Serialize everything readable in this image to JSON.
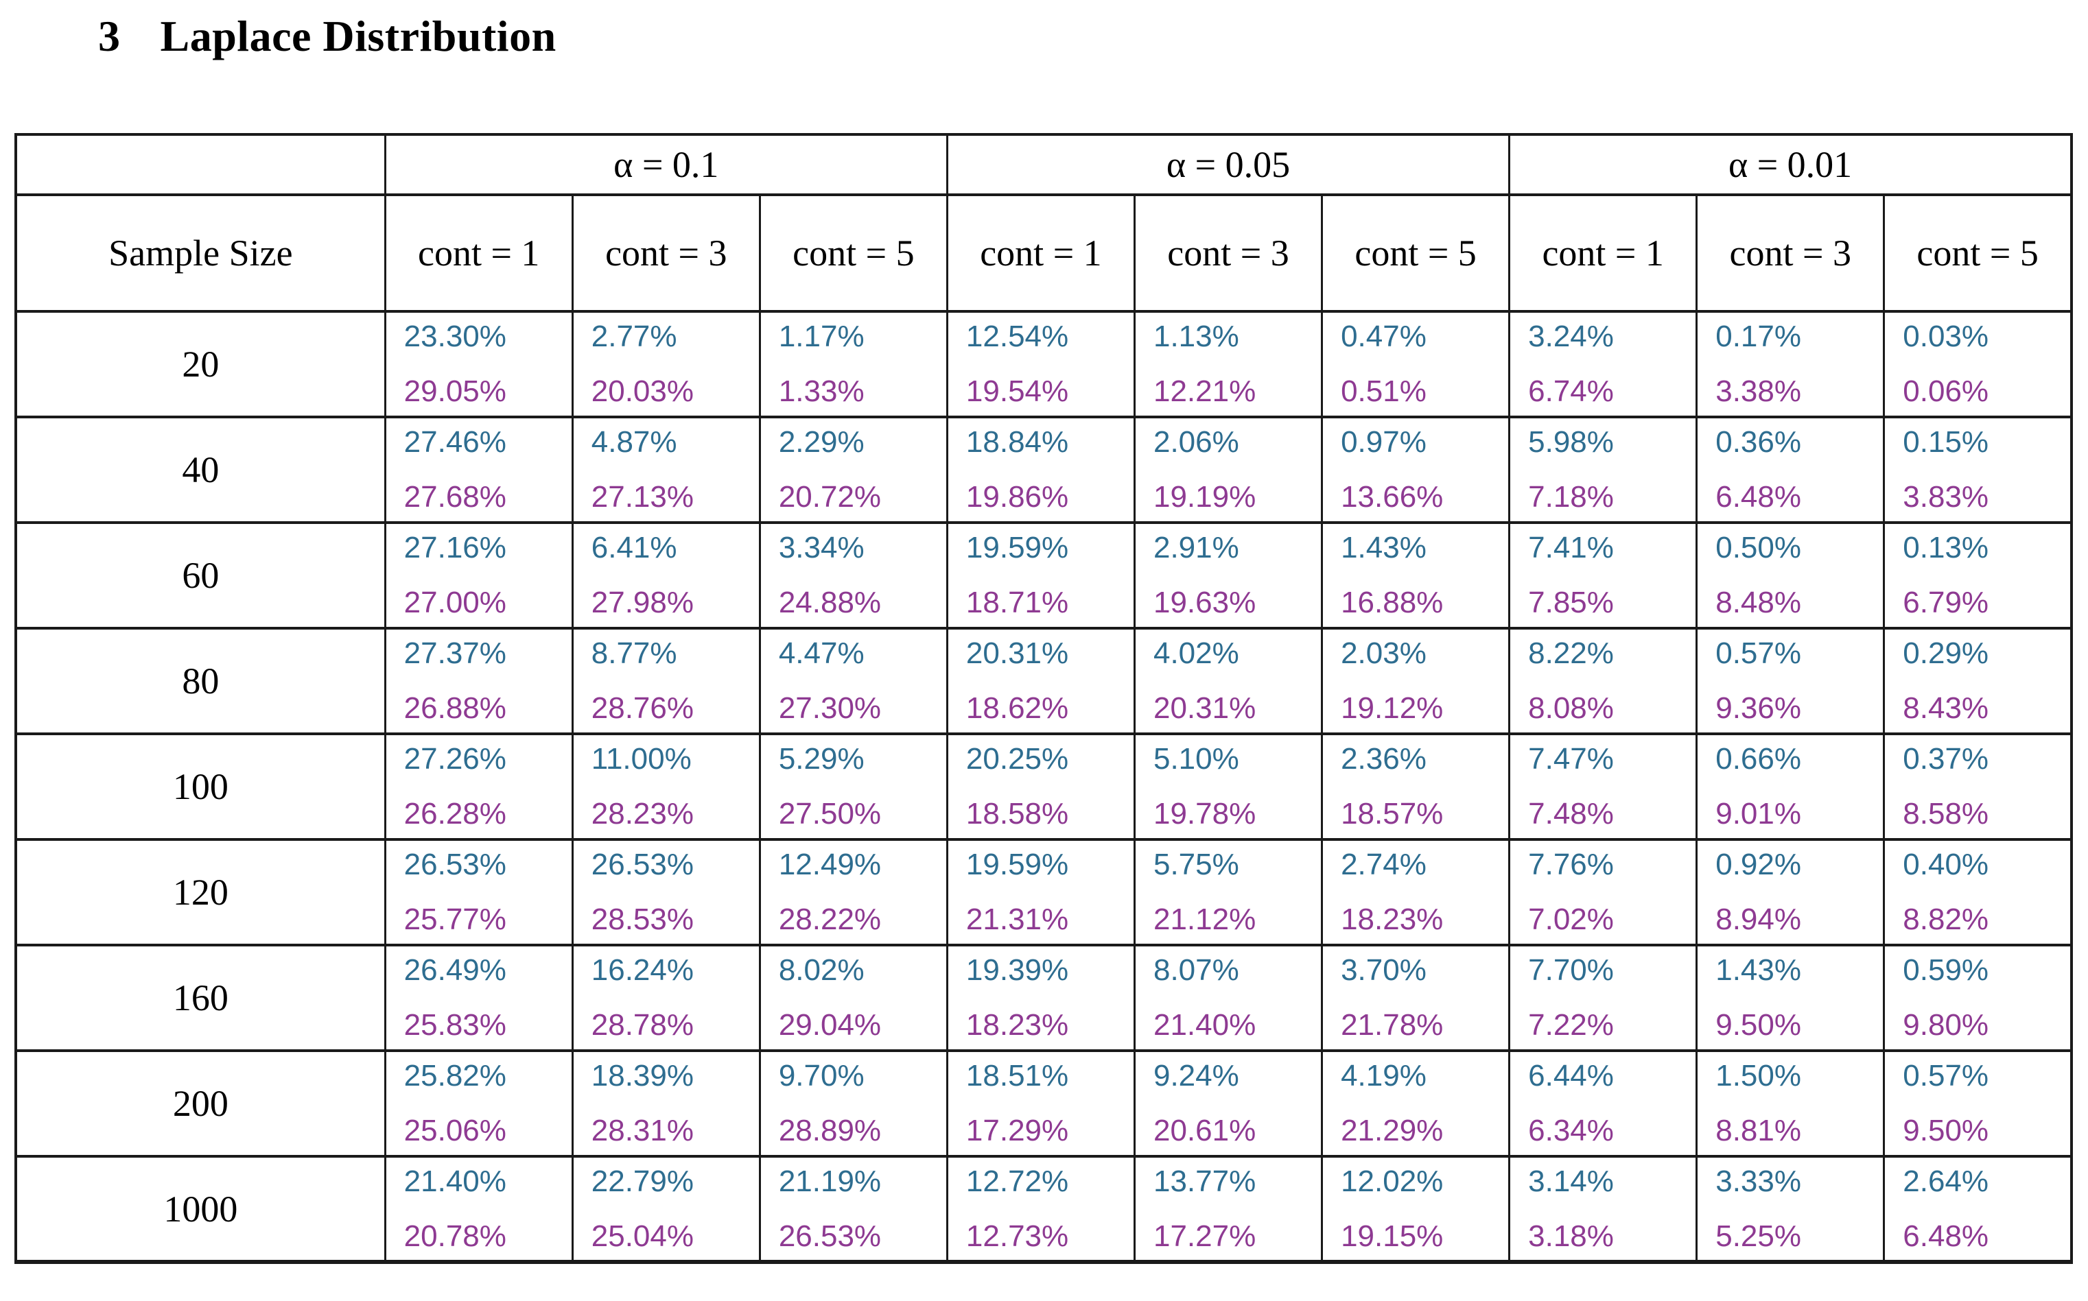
{
  "heading": {
    "number": "3",
    "title": "Laplace Distribution"
  },
  "colors": {
    "teal_value": "#2E6D90",
    "purple_value": "#8E3A92",
    "border": "#1a1a1a"
  },
  "table": {
    "row_header": "Sample Size",
    "alpha_groups": [
      "α = 0.1",
      "α = 0.05",
      "α = 0.01"
    ],
    "cont_headers": [
      "cont = 1",
      "cont = 3",
      "cont = 5"
    ],
    "rows": [
      {
        "sample_size": "20",
        "cells": [
          {
            "top": "23.30%",
            "bottom": "29.05%"
          },
          {
            "top": "2.77%",
            "bottom": "20.03%"
          },
          {
            "top": "1.17%",
            "bottom": "1.33%"
          },
          {
            "top": "12.54%",
            "bottom": "19.54%"
          },
          {
            "top": "1.13%",
            "bottom": "12.21%"
          },
          {
            "top": "0.47%",
            "bottom": "0.51%"
          },
          {
            "top": "3.24%",
            "bottom": "6.74%"
          },
          {
            "top": "0.17%",
            "bottom": "3.38%"
          },
          {
            "top": "0.03%",
            "bottom": "0.06%"
          }
        ]
      },
      {
        "sample_size": "40",
        "cells": [
          {
            "top": "27.46%",
            "bottom": "27.68%"
          },
          {
            "top": "4.87%",
            "bottom": "27.13%"
          },
          {
            "top": "2.29%",
            "bottom": "20.72%"
          },
          {
            "top": "18.84%",
            "bottom": "19.86%"
          },
          {
            "top": "2.06%",
            "bottom": "19.19%"
          },
          {
            "top": "0.97%",
            "bottom": "13.66%"
          },
          {
            "top": "5.98%",
            "bottom": "7.18%"
          },
          {
            "top": "0.36%",
            "bottom": "6.48%"
          },
          {
            "top": "0.15%",
            "bottom": "3.83%"
          }
        ]
      },
      {
        "sample_size": "60",
        "cells": [
          {
            "top": "27.16%",
            "bottom": "27.00%"
          },
          {
            "top": "6.41%",
            "bottom": "27.98%"
          },
          {
            "top": "3.34%",
            "bottom": "24.88%"
          },
          {
            "top": "19.59%",
            "bottom": "18.71%"
          },
          {
            "top": "2.91%",
            "bottom": "19.63%"
          },
          {
            "top": "1.43%",
            "bottom": "16.88%"
          },
          {
            "top": "7.41%",
            "bottom": "7.85%"
          },
          {
            "top": "0.50%",
            "bottom": "8.48%"
          },
          {
            "top": "0.13%",
            "bottom": "6.79%"
          }
        ]
      },
      {
        "sample_size": "80",
        "cells": [
          {
            "top": "27.37%",
            "bottom": "26.88%"
          },
          {
            "top": "8.77%",
            "bottom": "28.76%"
          },
          {
            "top": "4.47%",
            "bottom": "27.30%"
          },
          {
            "top": "20.31%",
            "bottom": "18.62%"
          },
          {
            "top": "4.02%",
            "bottom": "20.31%"
          },
          {
            "top": "2.03%",
            "bottom": "19.12%"
          },
          {
            "top": "8.22%",
            "bottom": "8.08%"
          },
          {
            "top": "0.57%",
            "bottom": "9.36%"
          },
          {
            "top": "0.29%",
            "bottom": "8.43%"
          }
        ]
      },
      {
        "sample_size": "100",
        "cells": [
          {
            "top": "27.26%",
            "bottom": "26.28%"
          },
          {
            "top": "11.00%",
            "bottom": "28.23%"
          },
          {
            "top": "5.29%",
            "bottom": "27.50%"
          },
          {
            "top": "20.25%",
            "bottom": "18.58%"
          },
          {
            "top": "5.10%",
            "bottom": "19.78%"
          },
          {
            "top": "2.36%",
            "bottom": "18.57%"
          },
          {
            "top": "7.47%",
            "bottom": "7.48%"
          },
          {
            "top": "0.66%",
            "bottom": "9.01%"
          },
          {
            "top": "0.37%",
            "bottom": "8.58%"
          }
        ]
      },
      {
        "sample_size": "120",
        "cells": [
          {
            "top": "26.53%",
            "bottom": "25.77%"
          },
          {
            "top": "26.53%",
            "bottom": "28.53%"
          },
          {
            "top": "12.49%",
            "bottom": "28.22%"
          },
          {
            "top": "19.59%",
            "bottom": "21.31%"
          },
          {
            "top": "5.75%",
            "bottom": "21.12%"
          },
          {
            "top": "2.74%",
            "bottom": "18.23%"
          },
          {
            "top": "7.76%",
            "bottom": "7.02%"
          },
          {
            "top": "0.92%",
            "bottom": "8.94%"
          },
          {
            "top": "0.40%",
            "bottom": "8.82%"
          }
        ]
      },
      {
        "sample_size": "160",
        "cells": [
          {
            "top": "26.49%",
            "bottom": "25.83%"
          },
          {
            "top": "16.24%",
            "bottom": "28.78%"
          },
          {
            "top": "8.02%",
            "bottom": "29.04%"
          },
          {
            "top": "19.39%",
            "bottom": "18.23%"
          },
          {
            "top": "8.07%",
            "bottom": "21.40%"
          },
          {
            "top": "3.70%",
            "bottom": "21.78%"
          },
          {
            "top": "7.70%",
            "bottom": "7.22%"
          },
          {
            "top": "1.43%",
            "bottom": "9.50%"
          },
          {
            "top": "0.59%",
            "bottom": "9.80%"
          }
        ]
      },
      {
        "sample_size": "200",
        "cells": [
          {
            "top": "25.82%",
            "bottom": "25.06%"
          },
          {
            "top": "18.39%",
            "bottom": "28.31%"
          },
          {
            "top": "9.70%",
            "bottom": "28.89%"
          },
          {
            "top": "18.51%",
            "bottom": "17.29%"
          },
          {
            "top": "9.24%",
            "bottom": "20.61%"
          },
          {
            "top": "4.19%",
            "bottom": "21.29%"
          },
          {
            "top": "6.44%",
            "bottom": "6.34%"
          },
          {
            "top": "1.50%",
            "bottom": "8.81%"
          },
          {
            "top": "0.57%",
            "bottom": "9.50%"
          }
        ]
      },
      {
        "sample_size": "1000",
        "cells": [
          {
            "top": "21.40%",
            "bottom": "20.78%"
          },
          {
            "top": "22.79%",
            "bottom": "25.04%"
          },
          {
            "top": "21.19%",
            "bottom": "26.53%"
          },
          {
            "top": "12.72%",
            "bottom": "12.73%"
          },
          {
            "top": "13.77%",
            "bottom": "17.27%"
          },
          {
            "top": "12.02%",
            "bottom": "19.15%"
          },
          {
            "top": "3.14%",
            "bottom": "3.18%"
          },
          {
            "top": "3.33%",
            "bottom": "5.25%"
          },
          {
            "top": "2.64%",
            "bottom": "6.48%"
          }
        ]
      }
    ]
  }
}
